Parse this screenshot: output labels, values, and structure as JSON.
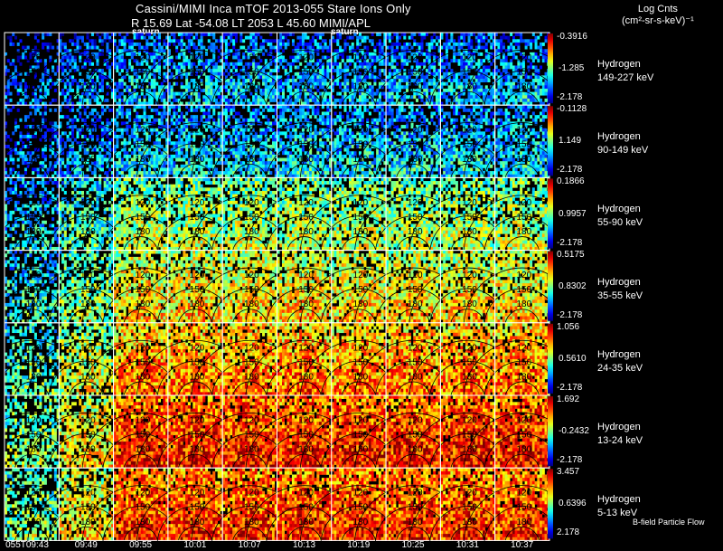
{
  "header": {
    "title_line1": "Cassini/MIMI Inca mTOF  2013-055   Stare   Ions Only",
    "title_line2": "R       15.69 Lat -54.08 LT 2053 L          45.60  MIMI/APL"
  },
  "legend": {
    "title_line1": "Log Cnts",
    "title_line2": "(cm²-sr-s-keV)⁻¹"
  },
  "markers": [
    "saturn",
    "saturn"
  ],
  "footer": {
    "bfield_label": "B-field Particle Flow",
    "time_labels": [
      "055T09:43",
      "09:49",
      "09:55",
      "10:01",
      "10:07",
      "10:13",
      "10:19",
      "10:25",
      "10:31",
      "10:37"
    ]
  },
  "chart_data": {
    "type": "heatmap",
    "title": "Cassini/MIMI Inca mTOF  2013-055   Stare   Ions Only",
    "subtitle": "R       15.69 Lat -54.08 LT 2053 L          45.60  MIMI/APL",
    "x": [
      "055T09:43",
      "09:49",
      "09:55",
      "10:01",
      "10:07",
      "10:13",
      "10:19",
      "10:25",
      "10:31",
      "10:37"
    ],
    "colorbar_label": "Log Cnts (cm²-sr-s-keV)⁻¹",
    "contour_labels": [
      "120",
      "150",
      "180"
    ],
    "series": [
      {
        "name": "Hydrogen",
        "energy": "149-227 keV",
        "cmax": "-0.3916",
        "cmid": "-1.285",
        "cmin": "-2.178",
        "level": 0.22
      },
      {
        "name": "Hydrogen",
        "energy": "90-149 keV",
        "cmax": "-0.1128",
        "cmid": "1.149",
        "cmin": "-2.178",
        "level": 0.26
      },
      {
        "name": "Hydrogen",
        "energy": "55-90 keV",
        "cmax": "0.1866",
        "cmid": "0.9957",
        "cmin": "-2.178",
        "level": 0.46
      },
      {
        "name": "Hydrogen",
        "energy": "35-55 keV",
        "cmax": "0.5175",
        "cmid": "0.8302",
        "cmin": "-2.178",
        "level": 0.56
      },
      {
        "name": "Hydrogen",
        "energy": "24-35 keV",
        "cmax": "1.056",
        "cmid": "0.5610",
        "cmin": "-2.178",
        "level": 0.66
      },
      {
        "name": "Hydrogen",
        "energy": "13-24 keV",
        "cmax": "1.692",
        "cmid": "-0.2432",
        "cmin": "-2.178",
        "level": 0.76
      },
      {
        "name": "Hydrogen",
        "energy": "5-13 keV",
        "cmax": "3.457",
        "cmid": "0.6396",
        "cmin": "2.178",
        "level": 0.74
      }
    ],
    "column_strength": [
      0.55,
      0.75,
      1.0,
      1.0,
      1.0,
      1.0,
      1.0,
      1.0,
      1.0,
      1.0
    ]
  }
}
